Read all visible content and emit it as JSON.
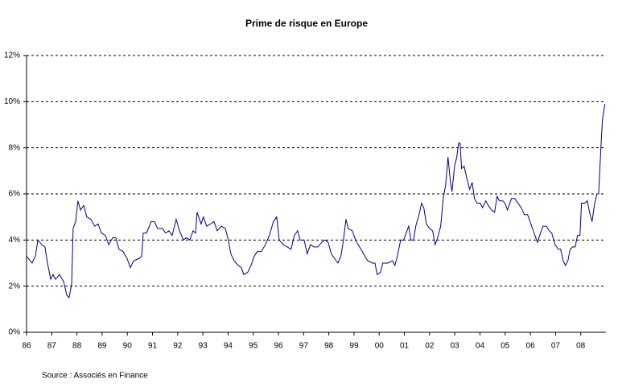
{
  "chart_data": {
    "type": "line",
    "title": "Prime de risque en Europe",
    "source": "Source :  Associés en Finance",
    "x": [
      1986.0,
      1986.22,
      1986.35,
      1986.45,
      1986.61,
      1986.73,
      1986.83,
      1986.96,
      1987.05,
      1987.15,
      1987.31,
      1987.47,
      1987.6,
      1987.69,
      1987.79,
      1987.85,
      1987.95,
      1988.04,
      1988.14,
      1988.27,
      1988.39,
      1988.55,
      1988.71,
      1988.84,
      1988.97,
      1989.13,
      1989.26,
      1989.42,
      1989.54,
      1989.67,
      1989.83,
      1989.99,
      1990.12,
      1990.25,
      1990.47,
      1990.57,
      1990.63,
      1990.76,
      1990.95,
      1991.08,
      1991.2,
      1991.4,
      1991.52,
      1991.65,
      1991.78,
      1991.94,
      1992.07,
      1992.23,
      1992.35,
      1992.48,
      1992.61,
      1992.71,
      1992.77,
      1992.93,
      1993.02,
      1993.15,
      1993.31,
      1993.44,
      1993.57,
      1993.73,
      1993.89,
      1994.01,
      1994.11,
      1994.24,
      1994.4,
      1994.53,
      1994.62,
      1994.78,
      1994.91,
      1995.04,
      1995.16,
      1995.32,
      1995.48,
      1995.64,
      1995.8,
      1995.93,
      1996.03,
      1996.19,
      1996.35,
      1996.5,
      1996.63,
      1996.76,
      1996.86,
      1997.02,
      1997.14,
      1997.27,
      1997.4,
      1997.56,
      1997.72,
      1997.85,
      1997.97,
      1998.1,
      1998.23,
      1998.36,
      1998.48,
      1998.58,
      1998.68,
      1998.77,
      1998.93,
      1999.06,
      1999.22,
      1999.38,
      1999.54,
      1999.73,
      1999.83,
      1999.92,
      2000.05,
      2000.14,
      2000.34,
      2000.53,
      2000.62,
      2000.72,
      2000.85,
      2000.97,
      2001.07,
      2001.17,
      2001.26,
      2001.36,
      2001.45,
      2001.58,
      2001.68,
      2001.77,
      2001.87,
      2002.0,
      2002.12,
      2002.22,
      2002.32,
      2002.44,
      2002.54,
      2002.64,
      2002.73,
      2002.83,
      2002.89,
      2002.99,
      2003.08,
      2003.15,
      2003.21,
      2003.27,
      2003.37,
      2003.47,
      2003.59,
      2003.69,
      2003.78,
      2003.88,
      2004.01,
      2004.1,
      2004.23,
      2004.33,
      2004.46,
      2004.58,
      2004.68,
      2004.77,
      2004.9,
      2004.99,
      2005.09,
      2005.25,
      2005.38,
      2005.51,
      2005.64,
      2005.76,
      2005.89,
      2006.02,
      2006.15,
      2006.28,
      2006.4,
      2006.5,
      2006.63,
      2006.75,
      2006.85,
      2006.98,
      2007.11,
      2007.2,
      2007.3,
      2007.39,
      2007.49,
      2007.58,
      2007.68,
      2007.78,
      2007.87,
      2007.97,
      2008.03,
      2008.16,
      2008.26,
      2008.35,
      2008.45,
      2008.54,
      2008.64,
      2008.71,
      2008.8,
      2008.86,
      2008.96
    ],
    "series": [
      {
        "name": "Prime de risque",
        "color": "#000080",
        "values": [
          3.3,
          3.0,
          3.3,
          4.0,
          3.8,
          3.7,
          3.0,
          2.3,
          2.5,
          2.3,
          2.5,
          2.2,
          1.6,
          1.5,
          2.1,
          4.5,
          4.8,
          5.7,
          5.3,
          5.5,
          5.0,
          4.9,
          4.6,
          4.7,
          4.3,
          4.2,
          3.8,
          4.1,
          4.1,
          3.6,
          3.5,
          3.2,
          2.8,
          3.1,
          3.2,
          3.3,
          4.3,
          4.3,
          4.8,
          4.8,
          4.5,
          4.5,
          4.3,
          4.4,
          4.2,
          4.9,
          4.4,
          4.0,
          4.1,
          4.0,
          4.4,
          4.3,
          5.2,
          4.7,
          5.0,
          4.6,
          4.7,
          4.8,
          4.4,
          4.6,
          4.5,
          4.0,
          3.4,
          3.1,
          2.9,
          2.8,
          2.5,
          2.6,
          2.9,
          3.3,
          3.5,
          3.5,
          3.8,
          4.2,
          4.8,
          5.0,
          4.0,
          3.8,
          3.7,
          3.6,
          4.2,
          4.4,
          4.0,
          4.0,
          3.4,
          3.8,
          3.7,
          3.7,
          3.9,
          4.0,
          3.9,
          3.4,
          3.2,
          3.0,
          3.3,
          4.0,
          4.9,
          4.5,
          4.4,
          4.0,
          3.7,
          3.4,
          3.1,
          3.0,
          3.0,
          2.5,
          2.6,
          3.0,
          3.0,
          3.1,
          2.9,
          3.3,
          4.0,
          4.0,
          4.3,
          4.6,
          4.0,
          4.0,
          4.6,
          5.1,
          5.6,
          5.4,
          4.7,
          4.5,
          4.4,
          3.8,
          4.1,
          4.6,
          5.8,
          6.4,
          7.6,
          6.5,
          6.1,
          7.2,
          7.6,
          8.2,
          8.2,
          7.1,
          7.2,
          6.7,
          6.2,
          6.5,
          5.8,
          5.6,
          5.6,
          5.4,
          5.7,
          5.5,
          5.3,
          5.2,
          5.9,
          5.7,
          5.7,
          5.6,
          5.3,
          5.8,
          5.8,
          5.6,
          5.4,
          5.1,
          5.1,
          4.7,
          4.3,
          3.9,
          4.3,
          4.6,
          4.6,
          4.4,
          4.3,
          3.8,
          3.6,
          3.6,
          3.1,
          2.9,
          3.1,
          3.6,
          3.7,
          3.7,
          4.2,
          4.2,
          5.6,
          5.6,
          5.7,
          5.2,
          4.8,
          5.5,
          6.0,
          6.0,
          8.0,
          9.2,
          9.9
        ]
      }
    ],
    "xlim": [
      1986,
      2009
    ],
    "xticks": [
      {
        "value": 1986,
        "label": "86"
      },
      {
        "value": 1987,
        "label": "87"
      },
      {
        "value": 1988,
        "label": "88"
      },
      {
        "value": 1989,
        "label": "89"
      },
      {
        "value": 1990,
        "label": "90"
      },
      {
        "value": 1991,
        "label": "91"
      },
      {
        "value": 1992,
        "label": "92"
      },
      {
        "value": 1993,
        "label": "93"
      },
      {
        "value": 1994,
        "label": "94"
      },
      {
        "value": 1995,
        "label": "95"
      },
      {
        "value": 1996,
        "label": "96"
      },
      {
        "value": 1997,
        "label": "97"
      },
      {
        "value": 1998,
        "label": "98"
      },
      {
        "value": 1999,
        "label": "99"
      },
      {
        "value": 2000,
        "label": "00"
      },
      {
        "value": 2001,
        "label": "01"
      },
      {
        "value": 2002,
        "label": "02"
      },
      {
        "value": 2003,
        "label": "03"
      },
      {
        "value": 2004,
        "label": "04"
      },
      {
        "value": 2005,
        "label": "05"
      },
      {
        "value": 2006,
        "label": "06"
      },
      {
        "value": 2007,
        "label": "07"
      },
      {
        "value": 2008,
        "label": "08"
      }
    ],
    "ylim": [
      0,
      12
    ],
    "yticks": [
      {
        "value": 0,
        "label": "0%"
      },
      {
        "value": 2,
        "label": "2%"
      },
      {
        "value": 4,
        "label": "4%"
      },
      {
        "value": 6,
        "label": "6%"
      },
      {
        "value": 8,
        "label": "8%"
      },
      {
        "value": 10,
        "label": "10%"
      },
      {
        "value": 12,
        "label": "12%"
      }
    ],
    "grid": true
  }
}
